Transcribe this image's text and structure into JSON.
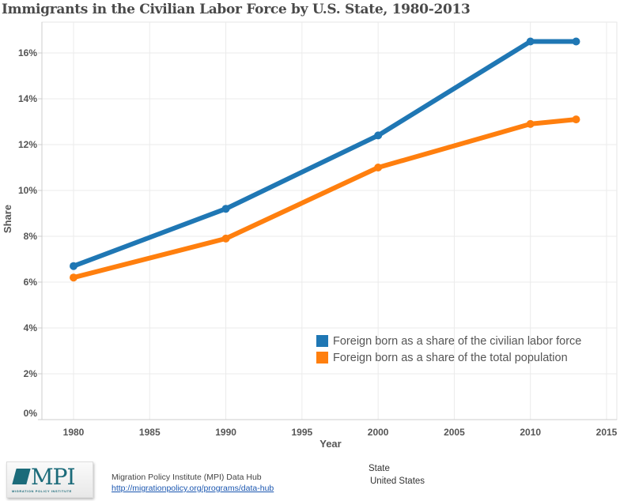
{
  "title": "Immigrants in the Civilian Labor Force by U.S. State, 1980-2013",
  "chart_data": {
    "type": "line",
    "title": "Immigrants in the Civilian Labor Force by U.S. State, 1980-2013",
    "xlabel": "Year",
    "ylabel": "Share",
    "xlim": [
      1977,
      2015
    ],
    "ylim": [
      0,
      17.3
    ],
    "x_ticks": [
      1980,
      1985,
      1990,
      1995,
      2000,
      2005,
      2010,
      2015
    ],
    "y_ticks": [
      0,
      2,
      4,
      6,
      8,
      10,
      12,
      14,
      16
    ],
    "y_tick_labels": [
      "0%",
      "2%",
      "4%",
      "6%",
      "8%",
      "10%",
      "12%",
      "14%",
      "16%"
    ],
    "grid": true,
    "legend_position": "bottom-right",
    "series": [
      {
        "name": "Foreign born as a share of the civilian labor force",
        "color": "#1f77b4",
        "x": [
          1980,
          1990,
          2000,
          2010,
          2013
        ],
        "values": [
          6.7,
          9.2,
          12.4,
          16.5,
          16.5
        ]
      },
      {
        "name": "Foreign born as a share of the total population",
        "color": "#ff7f0e",
        "x": [
          1980,
          1990,
          2000,
          2010,
          2013
        ],
        "values": [
          6.2,
          7.9,
          11.0,
          12.9,
          13.1
        ]
      }
    ]
  },
  "footer": {
    "logo_text": "MPI",
    "logo_subtext": "MIGRATION POLICY INSTITUTE",
    "source_name": "Migration Policy Institute (MPI) Data Hub",
    "source_link": "http://migrationpolicy.org/programs/data-hub",
    "filter_label": "State",
    "filter_value": "United States"
  }
}
